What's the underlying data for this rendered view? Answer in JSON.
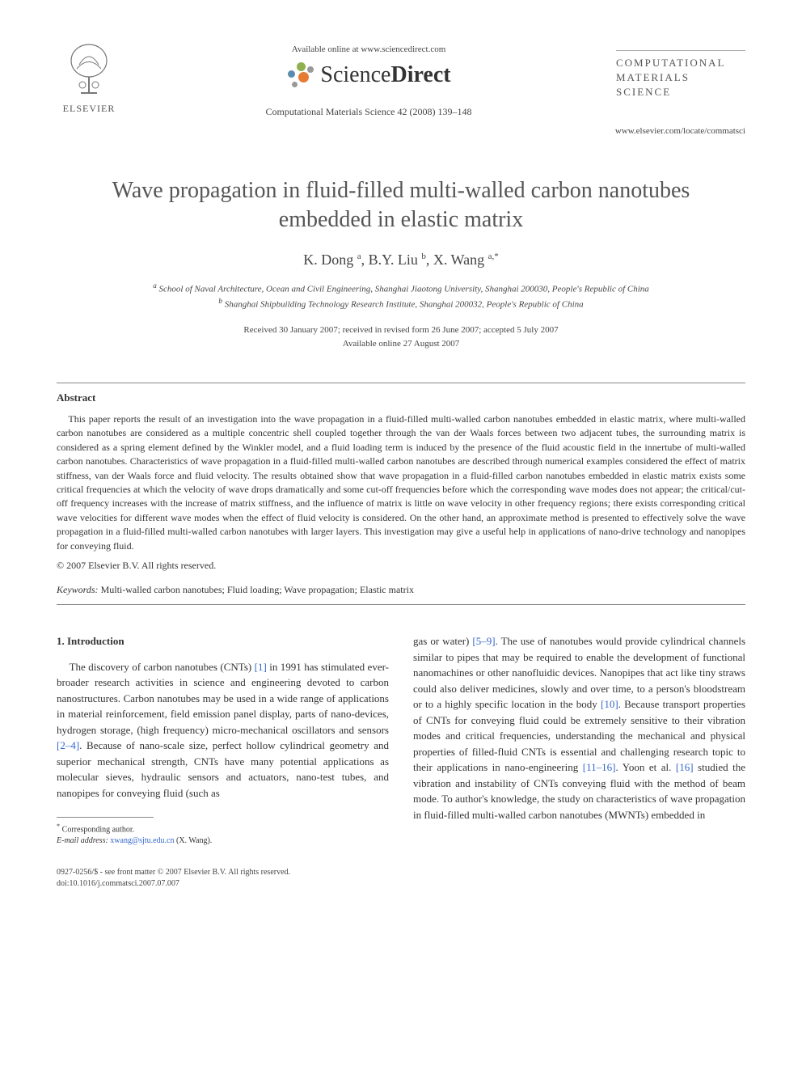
{
  "header": {
    "elsevier_label": "ELSEVIER",
    "available_online": "Available online at www.sciencedirect.com",
    "sciencedirect_prefix": "Science",
    "sciencedirect_suffix": "Direct",
    "citation": "Computational Materials Science 42 (2008) 139–148",
    "journal_name_l1": "COMPUTATIONAL",
    "journal_name_l2": "MATERIALS",
    "journal_name_l3": "SCIENCE",
    "journal_url": "www.elsevier.com/locate/commatsci"
  },
  "title": "Wave propagation in fluid-filled multi-walled carbon nanotubes embedded in elastic matrix",
  "authors_html": "K. Dong <sup>a</sup>, B.Y. Liu <sup>b</sup>, X. Wang <sup>a,*</sup>",
  "affiliations": {
    "a": "School of Naval Architecture, Ocean and Civil Engineering, Shanghai Jiaotong University, Shanghai 200030, People's Republic of China",
    "b": "Shanghai Shipbuilding Technology Research Institute, Shanghai 200032, People's Republic of China"
  },
  "dates": {
    "received": "Received 30 January 2007; received in revised form 26 June 2007; accepted 5 July 2007",
    "online": "Available online 27 August 2007"
  },
  "abstract": {
    "heading": "Abstract",
    "body": "This paper reports the result of an investigation into the wave propagation in a fluid-filled multi-walled carbon nanotubes embedded in elastic matrix, where multi-walled carbon nanotubes are considered as a multiple concentric shell coupled together through the van der Waals forces between two adjacent tubes, the surrounding matrix is considered as a spring element defined by the Winkler model, and a fluid loading term is induced by the presence of the fluid acoustic field in the innertube of multi-walled carbon nanotubes. Characteristics of wave propagation in a fluid-filled multi-walled carbon nanotubes are described through numerical examples considered the effect of matrix stiffness, van der Waals force and fluid velocity. The results obtained show that wave propagation in a fluid-filled carbon nanotubes embedded in elastic matrix exists some critical frequencies at which the velocity of wave drops dramatically and some cut-off frequencies before which the corresponding wave modes does not appear; the critical/cut-off frequency increases with the increase of matrix stiffness, and the influence of matrix is little on wave velocity in other frequency regions; there exists corresponding critical wave velocities for different wave modes when the effect of fluid velocity is considered. On the other hand, an approximate method is presented to effectively solve the wave propagation in a fluid-filled multi-walled carbon nanotubes with larger layers. This investigation may give a useful help in applications of nano-drive technology and nanopipes for conveying fluid.",
    "copyright": "© 2007 Elsevier B.V. All rights reserved."
  },
  "keywords": {
    "label": "Keywords:",
    "text": "Multi-walled carbon nanotubes; Fluid loading; Wave propagation; Elastic matrix"
  },
  "section1": {
    "heading": "1. Introduction",
    "col1_pre": "The discovery of carbon nanotubes (CNTs) ",
    "ref1": "[1]",
    "col1_mid": " in 1991 has stimulated ever-broader research activities in science and engineering devoted to carbon nanostructures. Carbon nanotubes may be used in a wide range of applications in material reinforcement, field emission panel display, parts of nano-devices, hydrogen storage, (high frequency) micro-mechanical oscillators and sensors ",
    "ref2": "[2–4]",
    "col1_post": ". Because of nano-scale size, perfect hollow cylindrical geometry and superior mechanical strength, CNTs have many potential applications as molecular sieves, hydraulic sensors and actuators, nano-test tubes, and nanopipes for conveying fluid (such as",
    "col2_pre": "gas or water) ",
    "ref3": "[5–9]",
    "col2_mid1": ". The use of nanotubes would provide cylindrical channels similar to pipes that may be required to enable the development of functional nanomachines or other nanofluidic devices. Nanopipes that act like tiny straws could also deliver medicines, slowly and over time, to a person's bloodstream or to a highly specific location in the body ",
    "ref4": "[10]",
    "col2_mid2": ". Because transport properties of CNTs for conveying fluid could be extremely sensitive to their vibration modes and critical frequencies, understanding the mechanical and physical properties of filled-fluid CNTs is essential and challenging research topic to their applications in nano-engineering ",
    "ref5": "[11–16]",
    "col2_mid3": ". Yoon et al. ",
    "ref6": "[16]",
    "col2_post": " studied the vibration and instability of CNTs conveying fluid with the method of beam mode. To author's knowledge, the study on characteristics of wave propagation in fluid-filled multi-walled carbon nanotubes (MWNTs) embedded in"
  },
  "footnote": {
    "corr": "Corresponding author.",
    "email_label": "E-mail address:",
    "email": "xwang@sjtu.edu.cn",
    "email_suffix": "(X. Wang)."
  },
  "footer": {
    "line1": "0927-0256/$ - see front matter © 2007 Elsevier B.V. All rights reserved.",
    "line2": "doi:10.1016/j.commatsci.2007.07.007"
  },
  "colors": {
    "text": "#333333",
    "link": "#3366cc",
    "rule": "#888888",
    "sd_orange": "#e67b33",
    "sd_green": "#8fb04e",
    "sd_blue": "#5a8bb0",
    "sd_grey": "#999999"
  }
}
